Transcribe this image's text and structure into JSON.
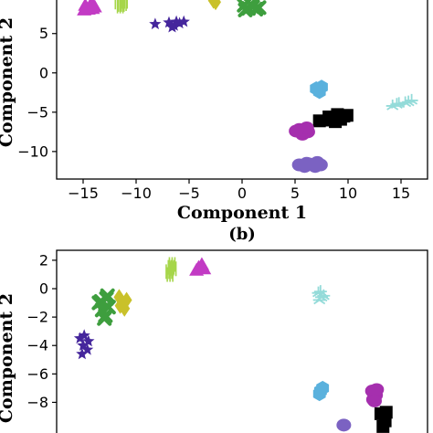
{
  "chart_data": [
    {
      "type": "scatter",
      "subtitle": "",
      "xlabel": "Component 1",
      "ylabel": "Component 2",
      "xlim": [
        -17.5,
        17.5
      ],
      "ylim": [
        -13.5,
        9.5
      ],
      "xticks": [
        -15,
        -10,
        -5,
        0,
        5,
        10,
        15
      ],
      "yticks": [
        5,
        0,
        -5,
        -10
      ],
      "grid": false,
      "legend": "none",
      "series": [
        {
          "marker": "triangle",
          "color": "#c23bc4",
          "points": [
            [
              -14.8,
              8.6
            ],
            [
              -14.2,
              8.9
            ],
            [
              -14.5,
              8.1
            ],
            [
              -13.9,
              8.4
            ],
            [
              -14.9,
              8.0
            ],
            [
              -14.1,
              8.2
            ]
          ]
        },
        {
          "marker": "bar",
          "color": "#a6d64a",
          "points": [
            [
              -11.7,
              9.0
            ],
            [
              -11.4,
              8.7
            ],
            [
              -11.1,
              9.1
            ],
            [
              -11.5,
              8.5
            ],
            [
              -11.2,
              8.8
            ]
          ]
        },
        {
          "marker": "star",
          "color": "#45269c",
          "points": [
            [
              -8.2,
              6.2
            ],
            [
              -6.9,
              6.4
            ],
            [
              -6.4,
              6.0
            ],
            [
              -5.9,
              6.3
            ],
            [
              -6.6,
              5.8
            ],
            [
              -5.5,
              6.5
            ],
            [
              -6.2,
              6.5
            ]
          ]
        },
        {
          "marker": "diamond",
          "color": "#c9c12a",
          "points": [
            [
              -2.7,
              9.2
            ],
            [
              -2.5,
              9.0
            ]
          ]
        },
        {
          "marker": "x",
          "color": "#3e9e3e",
          "points": [
            [
              0.2,
              8.6
            ],
            [
              0.6,
              8.2
            ],
            [
              1.0,
              8.4
            ],
            [
              0.3,
              8.0
            ],
            [
              1.3,
              8.1
            ],
            [
              0.8,
              8.7
            ],
            [
              1.6,
              8.3
            ]
          ]
        },
        {
          "marker": "hex",
          "color": "#5ab1dd",
          "points": [
            [
              7.2,
              -2.1
            ],
            [
              7.5,
              -1.8
            ],
            [
              7.3,
              -2.4
            ],
            [
              7.0,
              -2.0
            ]
          ]
        },
        {
          "marker": "tri_y",
          "color": "#94dbd9",
          "points": [
            [
              14.2,
              -4.2
            ],
            [
              14.8,
              -3.9
            ],
            [
              15.4,
              -3.8
            ],
            [
              16.0,
              -3.5
            ],
            [
              14.6,
              -4.0
            ],
            [
              15.7,
              -3.7
            ]
          ]
        },
        {
          "marker": "square",
          "color": "#000000",
          "points": [
            [
              7.3,
              -6.1
            ],
            [
              8.2,
              -5.6
            ],
            [
              9.0,
              -5.3
            ],
            [
              9.6,
              -5.5
            ],
            [
              8.8,
              -6.2
            ],
            [
              9.9,
              -5.4
            ],
            [
              9.3,
              -5.9
            ],
            [
              8.4,
              -6.0
            ]
          ]
        },
        {
          "marker": "circle",
          "color": "#a52fae",
          "points": [
            [
              5.4,
              -7.2
            ],
            [
              5.8,
              -7.3
            ],
            [
              6.2,
              -7.5
            ],
            [
              5.7,
              -7.8
            ],
            [
              6.1,
              -7.0
            ],
            [
              5.1,
              -7.4
            ]
          ]
        },
        {
          "marker": "circle",
          "color": "#7b62c2",
          "points": [
            [
              5.4,
              -11.7
            ],
            [
              5.9,
              -11.9
            ],
            [
              6.4,
              -11.6
            ],
            [
              6.9,
              -11.9
            ],
            [
              7.4,
              -11.7
            ],
            [
              6.1,
              -11.5
            ],
            [
              7.1,
              -11.4
            ]
          ]
        }
      ]
    },
    {
      "type": "scatter",
      "subtitle": "(b)",
      "xlabel": "",
      "ylabel": "Component 2",
      "xlim": [
        -17.5,
        17.5
      ],
      "ylim": [
        -10.8,
        2.7
      ],
      "xticks": [],
      "yticks": [
        2,
        0,
        -2,
        -4,
        -6,
        -8
      ],
      "grid": false,
      "legend": "none",
      "series": [
        {
          "marker": "bar",
          "color": "#a6d64a",
          "points": [
            [
              -6.9,
              1.2
            ],
            [
              -6.7,
              1.5
            ],
            [
              -6.5,
              1.4
            ],
            [
              -6.8,
              1.0
            ],
            [
              -6.6,
              1.7
            ]
          ]
        },
        {
          "marker": "triangle",
          "color": "#c23bc4",
          "points": [
            [
              -4.1,
              1.5
            ],
            [
              -3.6,
              1.4
            ],
            [
              -3.8,
              1.7
            ],
            [
              -4.3,
              1.3
            ]
          ]
        },
        {
          "marker": "x",
          "color": "#3e9e3e",
          "points": [
            [
              -13.5,
              -1.0
            ],
            [
              -13.2,
              -1.5
            ],
            [
              -12.8,
              -0.7
            ],
            [
              -12.9,
              -1.9
            ],
            [
              -13.3,
              -0.9
            ],
            [
              -12.6,
              -1.3
            ],
            [
              -13.0,
              -2.1
            ],
            [
              -12.7,
              -0.5
            ]
          ]
        },
        {
          "marker": "diamond",
          "color": "#c9c12a",
          "points": [
            [
              -11.6,
              -0.6
            ],
            [
              -11.3,
              -1.0
            ],
            [
              -11.1,
              -1.4
            ],
            [
              -11.5,
              -1.2
            ],
            [
              -10.9,
              -0.8
            ]
          ]
        },
        {
          "marker": "star",
          "color": "#45269c",
          "points": [
            [
              -15.3,
              -3.5
            ],
            [
              -15.0,
              -4.0
            ],
            [
              -14.6,
              -4.3
            ],
            [
              -15.1,
              -4.6
            ],
            [
              -14.5,
              -3.7
            ],
            [
              -14.9,
              -3.3
            ]
          ]
        },
        {
          "marker": "tri_y",
          "color": "#94dbd9",
          "points": [
            [
              7.2,
              -0.3
            ],
            [
              7.5,
              -0.6
            ],
            [
              7.4,
              -0.2
            ],
            [
              7.7,
              -0.5
            ],
            [
              7.3,
              -0.8
            ]
          ]
        },
        {
          "marker": "hex",
          "color": "#5ab1dd",
          "points": [
            [
              7.4,
              -7.2
            ],
            [
              7.6,
              -7.0
            ],
            [
              7.3,
              -7.4
            ]
          ]
        },
        {
          "marker": "circle",
          "color": "#a52fae",
          "points": [
            [
              12.3,
              -7.2
            ],
            [
              12.6,
              -7.5
            ],
            [
              12.4,
              -7.8
            ],
            [
              12.7,
              -7.1
            ],
            [
              12.5,
              -7.9
            ]
          ]
        },
        {
          "marker": "circle",
          "color": "#7b62c2",
          "points": [
            [
              9.6,
              -9.6
            ]
          ]
        },
        {
          "marker": "square",
          "color": "#000000",
          "points": [
            [
              13.1,
              -8.8
            ],
            [
              13.5,
              -9.3
            ],
            [
              13.3,
              -9.7
            ],
            [
              13.6,
              -8.7
            ]
          ]
        }
      ]
    }
  ]
}
